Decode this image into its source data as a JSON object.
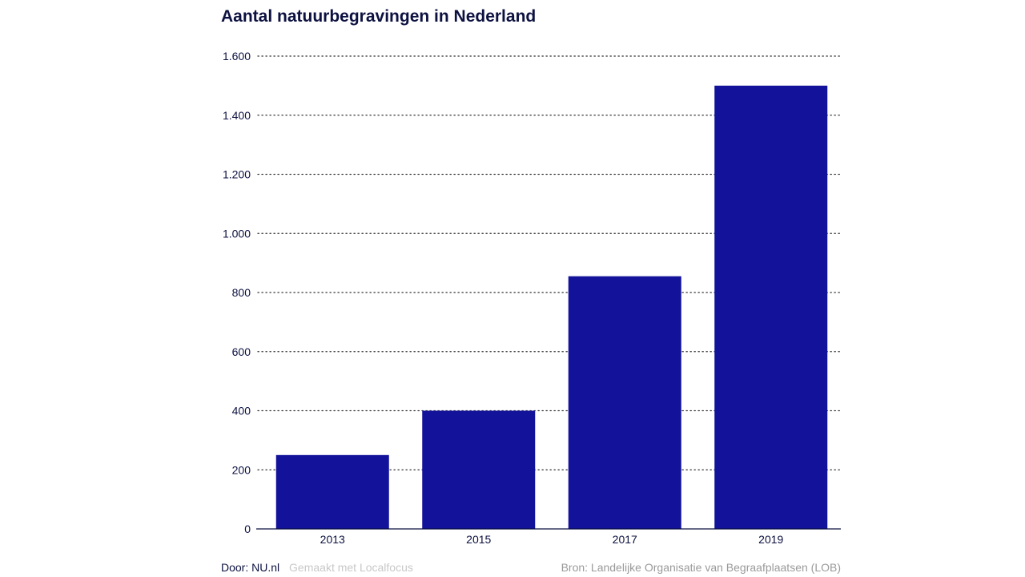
{
  "title": "Aantal natuurbegravingen in Nederland",
  "footer": {
    "author": "Door: NU.nl",
    "made_with": "Gemaakt met Localfocus",
    "source": "Bron: Landelijke Organisatie van Begraafplaatsen (LOB)"
  },
  "colors": {
    "bar": "#13129a",
    "text": "#0c1140",
    "grid": "#333333"
  },
  "chart_data": {
    "type": "bar",
    "title": "Aantal natuurbegravingen in Nederland",
    "categories": [
      "2013",
      "2015",
      "2017",
      "2019"
    ],
    "values": [
      250,
      400,
      855,
      1500
    ],
    "ylim": [
      0,
      1600
    ],
    "yticks": [
      0,
      200,
      400,
      600,
      800,
      1000,
      1200,
      1400,
      1600
    ],
    "ytick_labels": [
      "0",
      "200",
      "400",
      "600",
      "800",
      "1.000",
      "1.200",
      "1.400",
      "1.600"
    ],
    "grid": "horizontal-dotted",
    "legend": "none"
  }
}
